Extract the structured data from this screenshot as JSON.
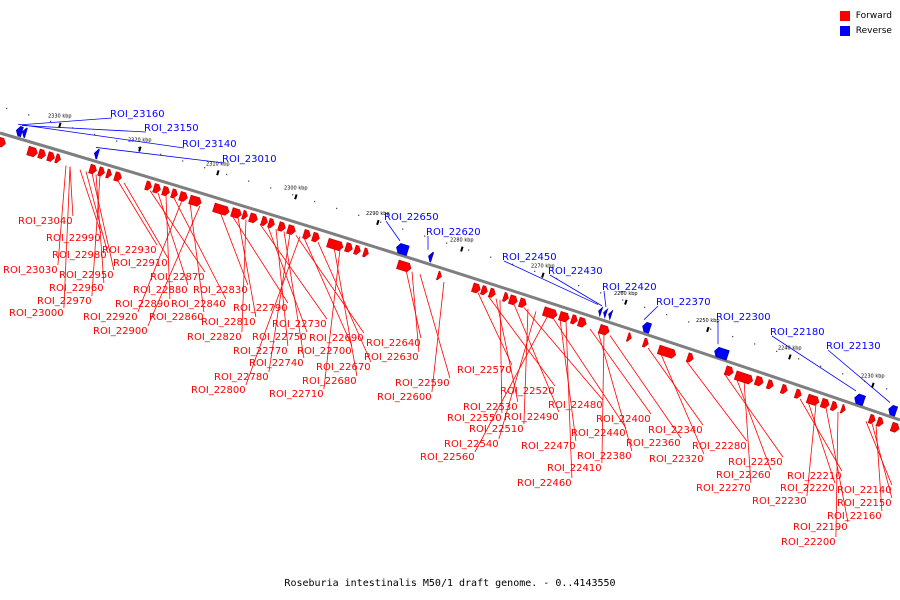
{
  "colors": {
    "forward": "#ff0000",
    "reverse": "#0000ff",
    "backbone": "#7f7f7f"
  },
  "legend": [
    {
      "label": "Forward",
      "color": "#ff0000"
    },
    {
      "label": "Reverse",
      "color": "#0000ff"
    }
  ],
  "caption": "Roseburia intestinalis M50/1 draft genome. - 0..4143550",
  "scale_ticks": [
    "2330 kbp",
    "2320 kbp",
    "2310 kbp",
    "2300 kbp",
    "2290 kbp",
    "2280 kbp",
    "2270 kbp",
    "2260 kbp",
    "2250 kbp",
    "2240 kbp",
    "2230 kbp"
  ],
  "reverse_labels": [
    "ROI_23160",
    "ROI_23150",
    "ROI_23140",
    "ROI_23010",
    "ROI_22650",
    "ROI_22620",
    "ROI_22450",
    "ROI_22430",
    "ROI_22420",
    "ROI_22370",
    "ROI_22300",
    "ROI_22180",
    "ROI_22130"
  ],
  "forward_labels": [
    "ROI_23040",
    "ROI_22990",
    "ROI_22980",
    "ROI_23030",
    "ROI_22950",
    "ROI_22960",
    "ROI_22970",
    "ROI_23000",
    "ROI_22930",
    "ROI_22910",
    "ROI_22870",
    "ROI_22880",
    "ROI_22890",
    "ROI_22840",
    "ROI_22920",
    "ROI_22860",
    "ROI_22900",
    "ROI_22830",
    "ROI_22790",
    "ROI_22810",
    "ROI_22730",
    "ROI_22820",
    "ROI_22750",
    "ROI_22690",
    "ROI_22770",
    "ROI_22700",
    "ROI_22740",
    "ROI_22670",
    "ROI_22780",
    "ROI_22680",
    "ROI_22800",
    "ROI_22710",
    "ROI_22640",
    "ROI_22630",
    "ROI_22590",
    "ROI_22600",
    "ROI_22570",
    "ROI_22520",
    "ROI_22530",
    "ROI_22550",
    "ROI_22490",
    "ROI_22480",
    "ROI_22510",
    "ROI_22400",
    "ROI_22540",
    "ROI_22440",
    "ROI_22470",
    "ROI_22360",
    "ROI_22560",
    "ROI_22380",
    "ROI_22410",
    "ROI_22340",
    "ROI_22460",
    "ROI_22320",
    "ROI_22280",
    "ROI_22250",
    "ROI_22260",
    "ROI_22270",
    "ROI_22210",
    "ROI_22220",
    "ROI_22230",
    "ROI_22140",
    "ROI_22150",
    "ROI_22160",
    "ROI_22190",
    "ROI_22200"
  ]
}
